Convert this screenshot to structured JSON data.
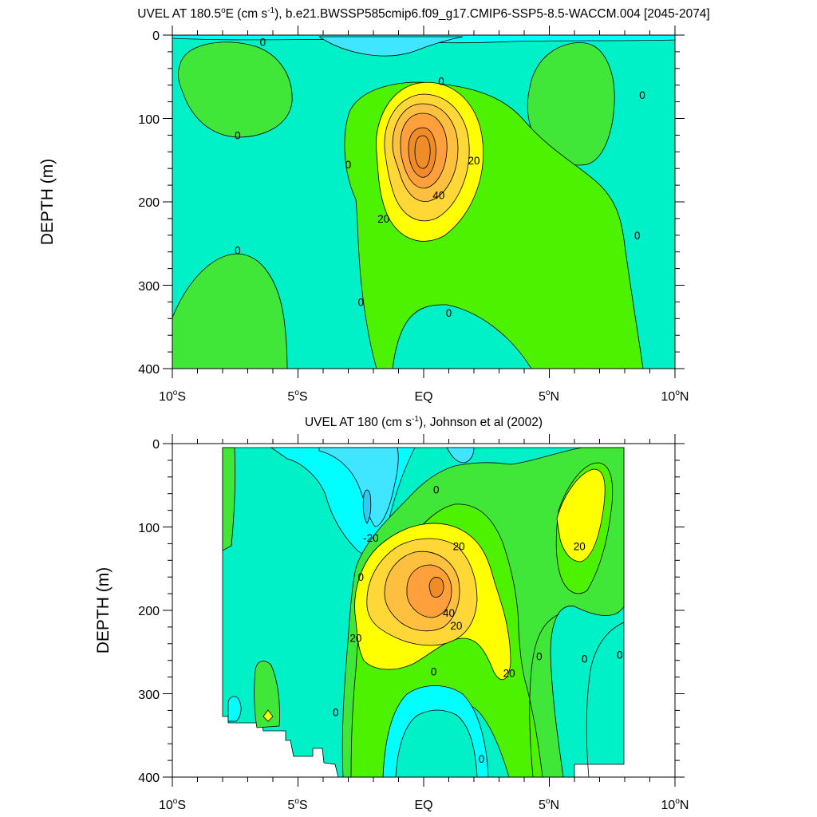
{
  "chart_data": [
    {
      "type": "heatmap",
      "title_main": "UVEL AT 180.5",
      "title_deg": "o",
      "title_unit_pre": "E (cm s",
      "title_unit_sup": "-1",
      "title_rest": "), b.e21.BWSSP585cmip6.f09_g17.CMIP6-SSP5-8.5-WACCM.004 [2045-2074]",
      "ylabel": "DEPTH (m)",
      "xlim": [
        -10,
        10
      ],
      "ylim": [
        0,
        400
      ],
      "yticks": [
        "0",
        "100",
        "200",
        "300",
        "400"
      ],
      "xticks": [
        {
          "num": "10",
          "deg": "o",
          "hemi": "S"
        },
        {
          "num": "5",
          "deg": "o",
          "hemi": "S"
        },
        {
          "num": "EQ",
          "deg": "",
          "hemi": ""
        },
        {
          "num": "5",
          "deg": "o",
          "hemi": "N"
        },
        {
          "num": "10",
          "deg": "o",
          "hemi": "N"
        }
      ],
      "contour_interval": 10,
      "core": {
        "lat": 0.0,
        "depth": 140,
        "max_value": 65
      },
      "contour_labels": [
        {
          "text": "0",
          "lat": -6.4,
          "depth": 8
        },
        {
          "text": "0",
          "lat": 0.7,
          "depth": 55
        },
        {
          "text": "0",
          "lat": 8.7,
          "depth": 72
        },
        {
          "text": "0",
          "lat": -7.4,
          "depth": 120
        },
        {
          "text": "0",
          "lat": -3.0,
          "depth": 155
        },
        {
          "text": "20",
          "lat": 2.0,
          "depth": 150
        },
        {
          "text": "40",
          "lat": 0.6,
          "depth": 192
        },
        {
          "text": "20",
          "lat": -1.6,
          "depth": 220
        },
        {
          "text": "0",
          "lat": 8.5,
          "depth": 240
        },
        {
          "text": "0",
          "lat": -7.4,
          "depth": 258
        },
        {
          "text": "0",
          "lat": -2.5,
          "depth": 320
        },
        {
          "text": "0",
          "lat": 1.0,
          "depth": 333
        }
      ]
    },
    {
      "type": "heatmap",
      "title_main": "UVEL AT 180 (cm s",
      "title_deg": "",
      "title_unit_pre": "",
      "title_unit_sup": "-1",
      "title_rest": "), Johnson et al (2002)",
      "ylabel": "DEPTH (m)",
      "xlim": [
        -10,
        10
      ],
      "ylim": [
        0,
        400
      ],
      "yticks": [
        "0",
        "100",
        "200",
        "300",
        "400"
      ],
      "xticks": [
        {
          "num": "10",
          "deg": "o",
          "hemi": "S"
        },
        {
          "num": "5",
          "deg": "o",
          "hemi": "S"
        },
        {
          "num": "EQ",
          "deg": "",
          "hemi": ""
        },
        {
          "num": "5",
          "deg": "o",
          "hemi": "N"
        },
        {
          "num": "10",
          "deg": "o",
          "hemi": "N"
        }
      ],
      "contour_interval": 10,
      "data_lat_range": [
        -8,
        8
      ],
      "core": {
        "lat": 0.6,
        "depth": 170,
        "max_value": 60
      },
      "contour_labels": [
        {
          "text": "0",
          "lat": 0.5,
          "depth": 55
        },
        {
          "text": "-20",
          "lat": -2.1,
          "depth": 113
        },
        {
          "text": "20",
          "lat": 1.4,
          "depth": 123
        },
        {
          "text": "20",
          "lat": 6.2,
          "depth": 123
        },
        {
          "text": "0",
          "lat": -2.5,
          "depth": 160
        },
        {
          "text": "40",
          "lat": 1.0,
          "depth": 203
        },
        {
          "text": "20",
          "lat": 1.3,
          "depth": 218
        },
        {
          "text": "20",
          "lat": -2.7,
          "depth": 233
        },
        {
          "text": "0",
          "lat": 4.6,
          "depth": 255
        },
        {
          "text": "0",
          "lat": 6.4,
          "depth": 258
        },
        {
          "text": "0",
          "lat": 7.8,
          "depth": 253
        },
        {
          "text": "0",
          "lat": 0.4,
          "depth": 273
        },
        {
          "text": "20",
          "lat": 3.4,
          "depth": 275
        },
        {
          "text": "0",
          "lat": -3.5,
          "depth": 322
        },
        {
          "text": "0",
          "lat": 2.3,
          "depth": 378
        }
      ]
    }
  ]
}
